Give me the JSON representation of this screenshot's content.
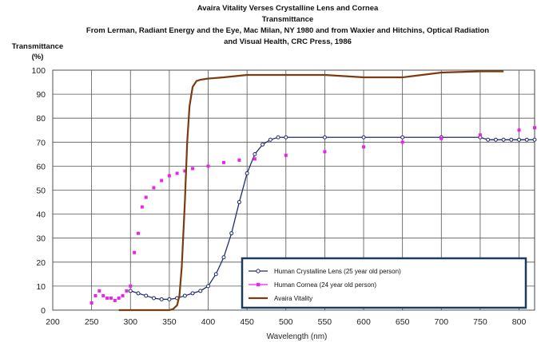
{
  "chart_data": {
    "type": "line",
    "title_lines": [
      "Avaira Vitality Verses Crystalline Lens and Cornea",
      "Transmittance",
      "From Lerman, Radiant Energy and the Eye, Mac Milan, NY 1980 and from Waxier and Hitchins, Optical Radiation",
      "and Visual Health, CRC Press, 1986"
    ],
    "ylabel_lines": [
      "Transmittance",
      "(%)"
    ],
    "xlabel": "Wavelength (nm)",
    "xlim": [
      200,
      820
    ],
    "ylim": [
      0,
      100
    ],
    "xticks": [
      "200",
      "250",
      "300",
      "350",
      "400",
      "450",
      "500",
      "550",
      "600",
      "650",
      "700",
      "750",
      "800"
    ],
    "yticks": [
      "0",
      "10",
      "20",
      "30",
      "40",
      "50",
      "60",
      "70",
      "80",
      "90",
      "100"
    ],
    "grid": true,
    "legend_position": "bottom-right",
    "series": [
      {
        "name": "Human Crystalline Lens (25 year old person)",
        "color": "#1f2d6b",
        "marker": "circle",
        "x": [
          300,
          310,
          320,
          330,
          340,
          350,
          360,
          370,
          380,
          390,
          400,
          410,
          420,
          430,
          440,
          450,
          460,
          470,
          480,
          490,
          500,
          550,
          600,
          650,
          700,
          750,
          760,
          770,
          780,
          790,
          800,
          810,
          820
        ],
        "y": [
          8,
          7,
          6,
          5,
          4.5,
          4.5,
          5,
          6,
          7,
          8,
          10,
          15,
          22,
          32,
          45,
          57,
          65,
          69,
          71,
          72,
          72,
          72,
          72,
          72,
          72,
          72,
          71,
          71,
          71,
          71,
          71,
          71,
          71
        ]
      },
      {
        "name": "Human Cornea (24 year old person)",
        "color": "#ee22ee",
        "marker": "square",
        "x": [
          250,
          255,
          260,
          265,
          270,
          275,
          280,
          285,
          290,
          295,
          300,
          305,
          310,
          315,
          320,
          330,
          340,
          350,
          360,
          370,
          380,
          400,
          420,
          440,
          460,
          500,
          550,
          600,
          650,
          700,
          750,
          800,
          820
        ],
        "y": [
          3,
          6,
          8,
          6,
          5,
          5,
          4,
          5,
          6,
          8,
          10,
          24,
          32,
          43,
          47,
          51,
          54,
          56,
          57,
          58,
          59,
          60,
          61.5,
          62.5,
          63,
          64.5,
          66,
          68,
          70,
          71.5,
          73,
          75,
          76
        ]
      },
      {
        "name": "Avaira Vitality",
        "color": "#7a3b0f",
        "marker": "none",
        "x": [
          285,
          300,
          320,
          340,
          350,
          355,
          360,
          363,
          366,
          370,
          373,
          376,
          380,
          385,
          390,
          400,
          420,
          450,
          500,
          550,
          600,
          650,
          700,
          750,
          780
        ],
        "y": [
          0,
          0,
          0,
          0,
          0,
          0.5,
          2,
          6,
          18,
          45,
          70,
          85,
          93,
          95.5,
          96,
          96.5,
          97,
          98,
          98,
          98,
          97,
          97,
          99,
          99.5,
          99.5
        ]
      }
    ]
  }
}
